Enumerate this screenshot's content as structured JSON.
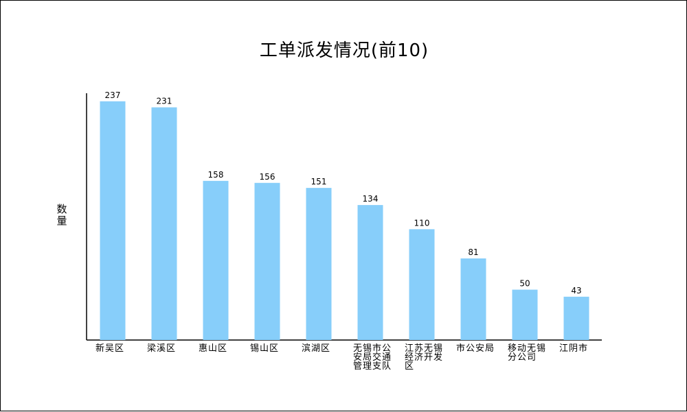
{
  "chart_data": {
    "type": "bar",
    "title": "工单派发情况(前10)",
    "ylabel": "数量",
    "xlabel": "",
    "categories": [
      "新吴区",
      "梁溪区",
      "惠山区",
      "锡山区",
      "滨湖区",
      "无锡市公安局交通管理支队",
      "江苏无锡经济开发区",
      "市公安局",
      "移动无锡分公司",
      "江阴市"
    ],
    "values": [
      237,
      231,
      158,
      156,
      151,
      134,
      110,
      81,
      50,
      43
    ],
    "ylim": [
      0,
      245
    ],
    "grid": false,
    "legend": "none",
    "bar_color": "#87cefa",
    "axis_color": "#000000"
  }
}
